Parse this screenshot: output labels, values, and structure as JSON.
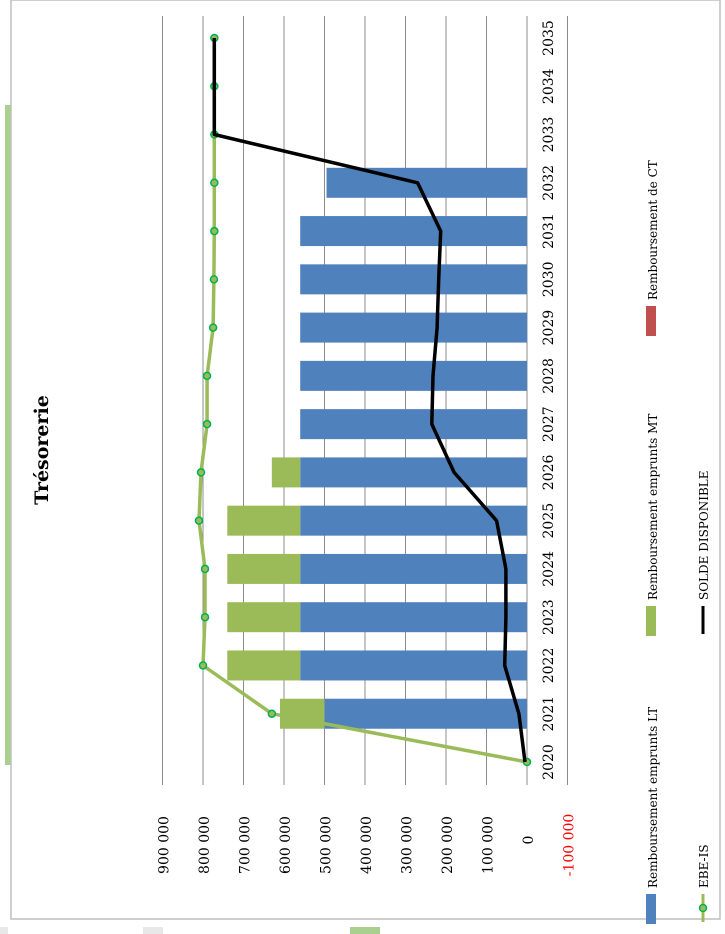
{
  "chart_data": {
    "type": "bar",
    "orientation": "rotated-90-clockwise",
    "title": "Trésorerie",
    "categories": [
      "2020",
      "2021",
      "2022",
      "2023",
      "2024",
      "2025",
      "2026",
      "2027",
      "2028",
      "2029",
      "2030",
      "2031",
      "2032",
      "2033",
      "2034",
      "2035"
    ],
    "stacked_series": [
      {
        "name": "Remboursement emprunts LT",
        "color": "#4f81bd",
        "values": [
          0,
          500000,
          560000,
          560000,
          560000,
          560000,
          560000,
          560000,
          560000,
          560000,
          560000,
          560000,
          495000,
          0,
          0,
          0
        ]
      },
      {
        "name": "Remboursement emprunts MT",
        "color": "#9bbb59",
        "values": [
          0,
          110000,
          180000,
          180000,
          180000,
          180000,
          70000,
          0,
          0,
          0,
          0,
          0,
          0,
          0,
          0,
          0
        ]
      },
      {
        "name": "Remboursement de CT",
        "color": "#c0504d",
        "values": [
          0,
          0,
          0,
          0,
          0,
          0,
          0,
          0,
          0,
          0,
          0,
          0,
          0,
          0,
          0,
          0
        ]
      }
    ],
    "line_series": [
      {
        "name": "EBE-IS",
        "color": "#9bbb59",
        "marker_color": "#00b050",
        "values": [
          0,
          630000,
          800000,
          795000,
          795000,
          810000,
          805000,
          790000,
          790000,
          775000,
          773000,
          772000,
          772000,
          772000,
          772000,
          772000
        ]
      },
      {
        "name": "SOLDE DISPONIBLE",
        "color": "#000000",
        "values": [
          5000,
          20000,
          55000,
          52000,
          52000,
          75000,
          180000,
          235000,
          232000,
          222000,
          218000,
          213000,
          270000,
          772000,
          772000,
          772000
        ]
      }
    ],
    "ylim": [
      -100000,
      900000
    ],
    "y_ticks": [
      {
        "value": 900000,
        "label": "900 000"
      },
      {
        "value": 800000,
        "label": "800 000"
      },
      {
        "value": 700000,
        "label": "700 000"
      },
      {
        "value": 600000,
        "label": "600 000"
      },
      {
        "value": 500000,
        "label": "500 000"
      },
      {
        "value": 400000,
        "label": "400 000"
      },
      {
        "value": 300000,
        "label": "300 000"
      },
      {
        "value": 200000,
        "label": "200 000"
      },
      {
        "value": 100000,
        "label": "100 000"
      },
      {
        "value": 0,
        "label": "0"
      },
      {
        "value": -100000,
        "label": "-100 000",
        "color": "#ff0000"
      }
    ],
    "grid": true,
    "legend_position": "bottom",
    "legend": [
      {
        "name": "Remboursement emprunts LT",
        "kind": "bar",
        "color": "#4f81bd"
      },
      {
        "name": "Remboursement emprunts MT",
        "kind": "bar",
        "color": "#9bbb59"
      },
      {
        "name": "Remboursement de CT",
        "kind": "bar",
        "color": "#c0504d"
      },
      {
        "name": "EBE-IS",
        "kind": "line-marker",
        "color": "#9bbb59",
        "marker_color": "#00b050"
      },
      {
        "name": "SOLDE DISPONIBLE",
        "kind": "line",
        "color": "#000000"
      }
    ]
  }
}
